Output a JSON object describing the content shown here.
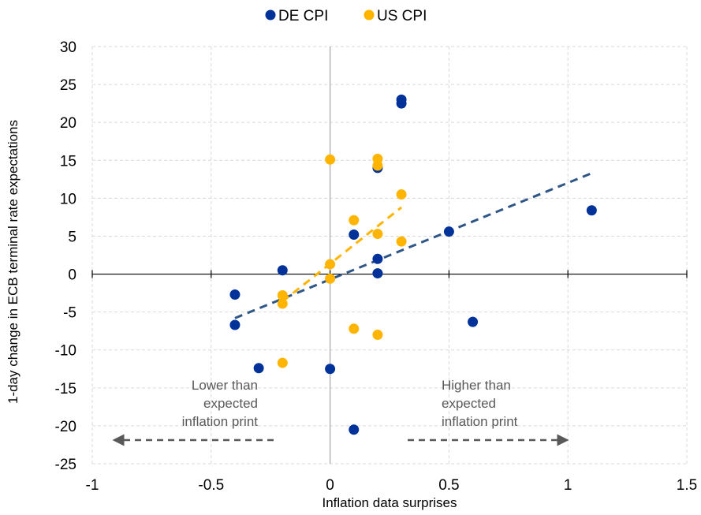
{
  "chart_data": {
    "type": "scatter",
    "xlabel": "Inflation data surprises",
    "ylabel": "1-day change in ECB terminal rate expectations",
    "xlim": [
      -1,
      1.5
    ],
    "ylim": [
      -25,
      30
    ],
    "xticks": [
      -1,
      -0.5,
      0,
      0.5,
      1,
      1.5
    ],
    "yticks": [
      30,
      25,
      20,
      15,
      10,
      5,
      0,
      -5,
      -10,
      -15,
      -20,
      -25
    ],
    "grid": "dashed",
    "legend_position": "top",
    "series": [
      {
        "name": "DE CPI",
        "color": "#003299",
        "trend_color": "#2e5686",
        "points": [
          {
            "x": -0.4,
            "y": -2.7
          },
          {
            "x": -0.4,
            "y": -6.7
          },
          {
            "x": -0.3,
            "y": -12.4
          },
          {
            "x": -0.2,
            "y": 0.5
          },
          {
            "x": 0.0,
            "y": -12.5
          },
          {
            "x": 0.1,
            "y": 5.2
          },
          {
            "x": 0.1,
            "y": -20.5
          },
          {
            "x": 0.2,
            "y": 14.0
          },
          {
            "x": 0.2,
            "y": 2.0
          },
          {
            "x": 0.2,
            "y": 0.1
          },
          {
            "x": 0.3,
            "y": 23.0
          },
          {
            "x": 0.3,
            "y": 22.5
          },
          {
            "x": 0.5,
            "y": 5.6
          },
          {
            "x": 0.6,
            "y": -6.3
          },
          {
            "x": 1.1,
            "y": 8.4
          }
        ],
        "trendline": [
          {
            "x": -0.4,
            "y": -5.8
          },
          {
            "x": 1.1,
            "y": 13.3
          }
        ]
      },
      {
        "name": "US CPI",
        "color": "#ffb400",
        "trend_color": "#ffb400",
        "points": [
          {
            "x": -0.2,
            "y": -2.8
          },
          {
            "x": -0.2,
            "y": -3.9
          },
          {
            "x": -0.2,
            "y": -11.7
          },
          {
            "x": 0.0,
            "y": 15.1
          },
          {
            "x": 0.0,
            "y": 1.3
          },
          {
            "x": 0.0,
            "y": -0.6
          },
          {
            "x": 0.1,
            "y": 7.1
          },
          {
            "x": 0.1,
            "y": -7.2
          },
          {
            "x": 0.2,
            "y": 15.2
          },
          {
            "x": 0.2,
            "y": 14.3
          },
          {
            "x": 0.2,
            "y": 5.3
          },
          {
            "x": 0.2,
            "y": -8.0
          },
          {
            "x": 0.3,
            "y": 10.5
          },
          {
            "x": 0.3,
            "y": 4.3
          }
        ],
        "trendline": [
          {
            "x": -0.2,
            "y": -3.6
          },
          {
            "x": 0.3,
            "y": 8.8
          }
        ]
      }
    ],
    "annotations": [
      {
        "name": "lower",
        "lines": [
          "Lower than",
          "expected",
          "inflation print"
        ],
        "arrow": "left"
      },
      {
        "name": "higher",
        "lines": [
          "Higher than",
          "expected",
          "inflation print"
        ],
        "arrow": "right"
      }
    ]
  }
}
